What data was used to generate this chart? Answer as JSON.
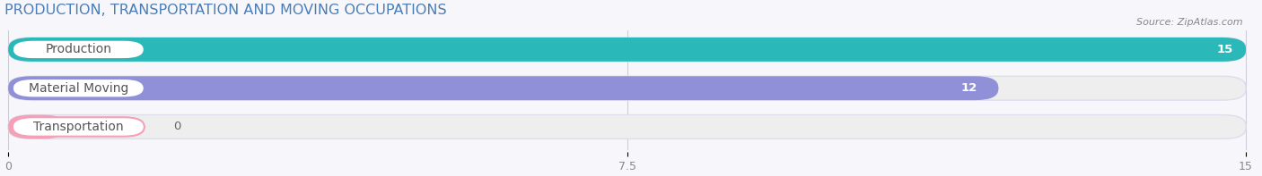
{
  "title": "PRODUCTION, TRANSPORTATION AND MOVING OCCUPATIONS",
  "source_text": "Source: ZipAtlas.com",
  "categories": [
    "Production",
    "Material Moving",
    "Transportation"
  ],
  "values": [
    15,
    12,
    0
  ],
  "bar_colors": [
    "#2ab8b8",
    "#9090d8",
    "#f4a0b8"
  ],
  "bg_bar_color": "#eeeeef",
  "xlim": [
    0,
    15
  ],
  "xticks": [
    0,
    7.5,
    15
  ],
  "title_fontsize": 11.5,
  "label_fontsize": 10,
  "value_fontsize": 9.5,
  "bar_height": 0.62,
  "figsize": [
    14.06,
    1.97
  ],
  "dpi": 100,
  "bg_color": "#f7f7fb"
}
